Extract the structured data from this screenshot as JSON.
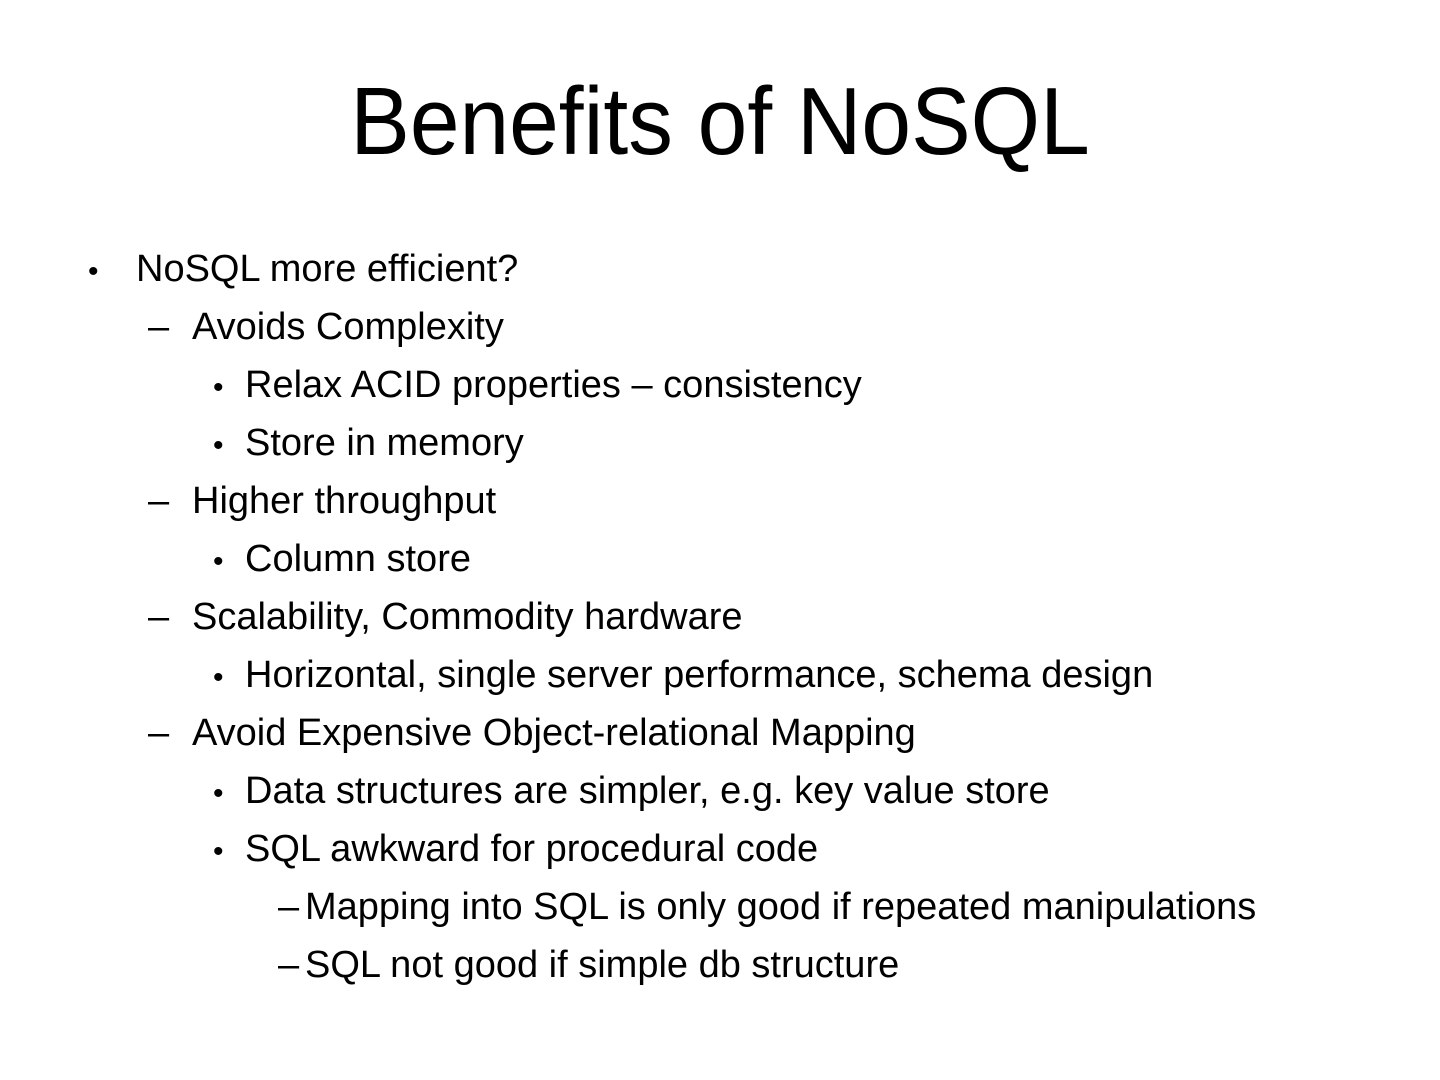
{
  "slide": {
    "title": "Benefits of NoSQL",
    "colors": {
      "background": "#ffffff",
      "text": "#000000"
    },
    "bullets": [
      {
        "level": 1,
        "marker": "•",
        "text": "NoSQL more efficient?"
      },
      {
        "level": 2,
        "marker": "–",
        "text": "Avoids Complexity"
      },
      {
        "level": 3,
        "marker": "•",
        "text": "Relax ACID properties – consistency"
      },
      {
        "level": 3,
        "marker": "•",
        "text": "Store in memory"
      },
      {
        "level": 2,
        "marker": "–",
        "text": "Higher throughput"
      },
      {
        "level": 3,
        "marker": "•",
        "text": "Column store"
      },
      {
        "level": 2,
        "marker": "–",
        "text": "Scalability, Commodity hardware"
      },
      {
        "level": 3,
        "marker": "•",
        "text": "Horizontal, single server performance, schema design"
      },
      {
        "level": 2,
        "marker": "–",
        "text": "Avoid Expensive Object-relational Mapping"
      },
      {
        "level": 3,
        "marker": "•",
        "text": "Data structures are simpler, e.g. key value store"
      },
      {
        "level": 3,
        "marker": "•",
        "text": "SQL awkward for procedural code"
      },
      {
        "level": 4,
        "marker": "–",
        "text": "Mapping into SQL is only good if repeated manipulations"
      },
      {
        "level": 4,
        "marker": "–",
        "text": "SQL not good if simple db structure"
      }
    ]
  }
}
